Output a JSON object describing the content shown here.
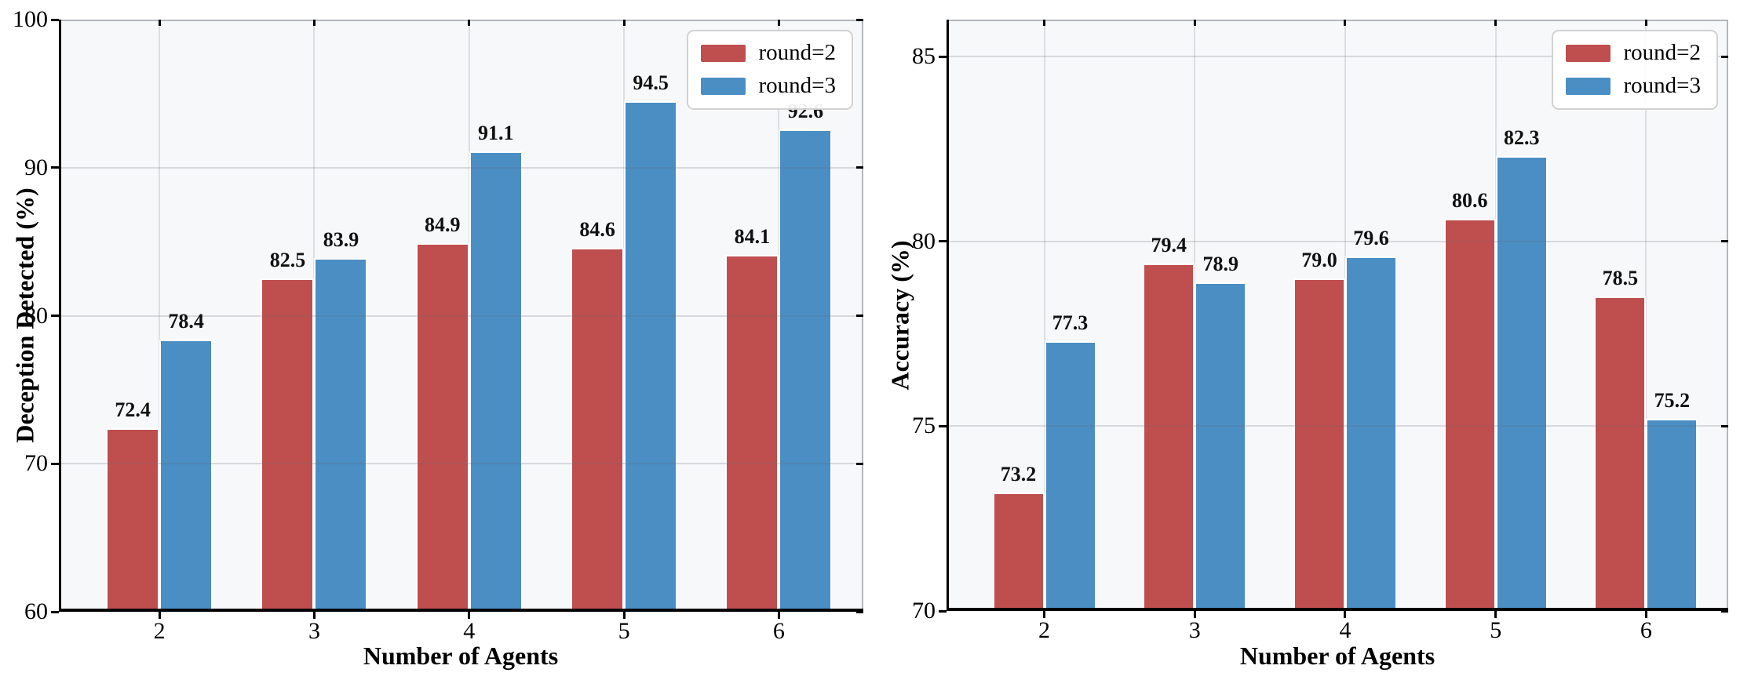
{
  "colors": {
    "round2": "#bf4e4e",
    "round3": "#4a8ec4",
    "plot_background": "#f7f8fa",
    "grid": "#dcdee2",
    "spine_major": "#000000",
    "spine_minor": "#b4b7bb"
  },
  "legend": {
    "position": "upper right",
    "entries": [
      {
        "label": "round=2",
        "color_key": "round2"
      },
      {
        "label": "round=3",
        "color_key": "round3"
      }
    ]
  },
  "chart_data": [
    {
      "type": "bar",
      "title": "",
      "xlabel": "Number of Agents",
      "ylabel": "Deception Detected (%)",
      "categories": [
        "2",
        "3",
        "4",
        "5",
        "6"
      ],
      "series": [
        {
          "name": "round=2",
          "color_key": "round2",
          "values": [
            72.4,
            82.5,
            84.9,
            84.6,
            84.1
          ]
        },
        {
          "name": "round=3",
          "color_key": "round3",
          "values": [
            78.4,
            83.9,
            91.1,
            94.5,
            92.6
          ]
        }
      ],
      "ylim": [
        60,
        100
      ],
      "yticks": [
        60,
        70,
        80,
        90,
        100
      ],
      "grid": true,
      "legend_position": "upper right"
    },
    {
      "type": "bar",
      "title": "",
      "xlabel": "Number of Agents",
      "ylabel": "Accuracy (%)",
      "categories": [
        "2",
        "3",
        "4",
        "5",
        "6"
      ],
      "series": [
        {
          "name": "round=2",
          "color_key": "round2",
          "values": [
            73.2,
            79.4,
            79.0,
            80.6,
            78.5
          ]
        },
        {
          "name": "round=3",
          "color_key": "round3",
          "values": [
            77.3,
            78.9,
            79.6,
            82.3,
            75.2
          ]
        }
      ],
      "ylim": [
        70,
        86
      ],
      "yticks": [
        70,
        75,
        80,
        85
      ],
      "grid": true,
      "legend_position": "upper right"
    }
  ]
}
